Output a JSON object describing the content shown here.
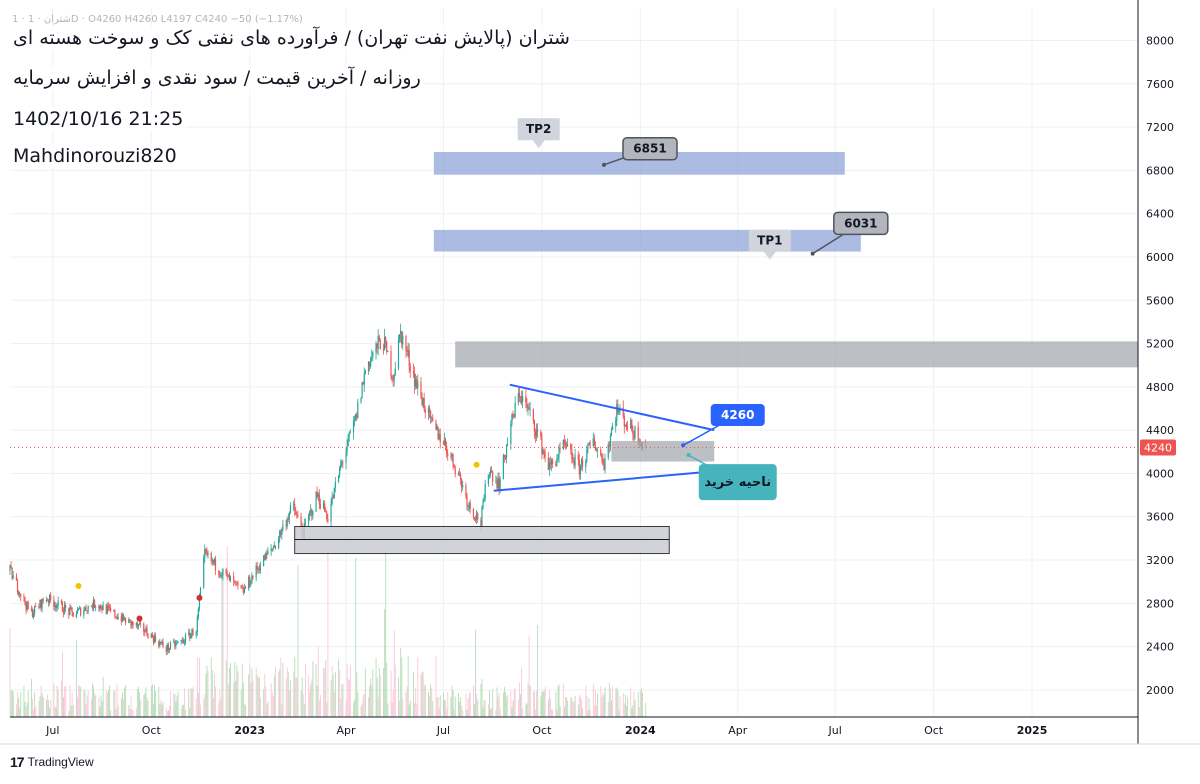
{
  "header": {
    "ohlc_line": "1 · شتران · 1D · O4260 H4260 L4197 C4240 −50 (−1.17%)",
    "title": "شتران (پالایش نفت تهران) / فرآورده های نفتی کک و سوخت هسته ای",
    "subtitle": "روزانه / آخرین قیمت / سود نقدی و افزایش سرمایه",
    "datetime": "1402/10/16 21:25",
    "author": "Mahdinorouzi820"
  },
  "branding": {
    "logo_mark": "17",
    "logo_text": "TradingView"
  },
  "colors": {
    "up": "#26a69a",
    "down": "#ef5350",
    "zone_blue": "#8fa4d8",
    "zone_grey": "#a6a9b0",
    "trendline": "#2962ff",
    "label_blue": "#2962ff",
    "label_teal": "#45b4bd",
    "price_tag": "#ef5350",
    "grid": "#eef0f3"
  },
  "chart_data": {
    "type": "candlestick",
    "y_axis": {
      "min": 1750,
      "max": 8300,
      "ticks": [
        2000,
        2400,
        2800,
        3200,
        3600,
        4000,
        4400,
        4800,
        5200,
        5600,
        6000,
        6400,
        6800,
        7200,
        7600,
        8000
      ]
    },
    "x_axis": {
      "start": "2022-05-22",
      "end": "2025-04-10",
      "ticks": [
        {
          "label": "Jul",
          "date": "2022-07-01"
        },
        {
          "label": "Oct",
          "date": "2022-10-01"
        },
        {
          "label": "2023",
          "date": "2023-01-01",
          "bold": true
        },
        {
          "label": "Apr",
          "date": "2023-04-01"
        },
        {
          "label": "Jul",
          "date": "2023-07-01"
        },
        {
          "label": "Oct",
          "date": "2023-10-01"
        },
        {
          "label": "2024",
          "date": "2024-01-01",
          "bold": true
        },
        {
          "label": "Apr",
          "date": "2024-04-01"
        },
        {
          "label": "Jul",
          "date": "2024-07-01"
        },
        {
          "label": "Oct",
          "date": "2024-10-01"
        },
        {
          "label": "2025",
          "date": "2025-01-01",
          "bold": true
        }
      ]
    },
    "price_path": [
      [
        "2022-05-22",
        3100
      ],
      [
        "2022-06-10",
        2700
      ],
      [
        "2022-06-25",
        2850
      ],
      [
        "2022-07-20",
        2700
      ],
      [
        "2022-08-10",
        2800
      ],
      [
        "2022-09-05",
        2650
      ],
      [
        "2022-09-25",
        2550
      ],
      [
        "2022-10-15",
        2380
      ],
      [
        "2022-10-30",
        2450
      ],
      [
        "2022-11-12",
        2560
      ],
      [
        "2022-11-20",
        3250
      ],
      [
        "2022-12-10",
        3050
      ],
      [
        "2022-12-25",
        2900
      ],
      [
        "2023-01-10",
        3150
      ],
      [
        "2023-01-25",
        3350
      ],
      [
        "2023-02-10",
        3700
      ],
      [
        "2023-02-20",
        3450
      ],
      [
        "2023-03-05",
        3800
      ],
      [
        "2023-03-15",
        3600
      ],
      [
        "2023-03-28",
        4100
      ],
      [
        "2023-04-10",
        4500
      ],
      [
        "2023-04-20",
        5000
      ],
      [
        "2023-05-05",
        5250
      ],
      [
        "2023-05-15",
        4900
      ],
      [
        "2023-05-22",
        5300
      ],
      [
        "2023-06-05",
        4850
      ],
      [
        "2023-06-20",
        4450
      ],
      [
        "2023-07-01",
        4300
      ],
      [
        "2023-07-15",
        4000
      ],
      [
        "2023-07-25",
        3700
      ],
      [
        "2023-08-05",
        3550
      ],
      [
        "2023-08-12",
        4050
      ],
      [
        "2023-08-22",
        3900
      ],
      [
        "2023-09-01",
        4400
      ],
      [
        "2023-09-10",
        4750
      ],
      [
        "2023-09-22",
        4500
      ],
      [
        "2023-10-08",
        4050
      ],
      [
        "2023-10-22",
        4250
      ],
      [
        "2023-11-05",
        4050
      ],
      [
        "2023-11-18",
        4300
      ],
      [
        "2023-11-28",
        4100
      ],
      [
        "2023-12-10",
        4600
      ],
      [
        "2023-12-20",
        4450
      ],
      [
        "2023-12-30",
        4350
      ],
      [
        "2024-01-06",
        4240
      ]
    ],
    "volume_date_range": [
      "2022-05-22",
      "2024-01-06"
    ],
    "last_price": {
      "value": 4240,
      "label": "4240"
    },
    "zones": [
      {
        "x0": "2023-06-22",
        "x1": "2024-07-10",
        "y0": 6760,
        "y1": 6970,
        "color": "blue"
      },
      {
        "x0": "2023-06-22",
        "x1": "2024-07-25",
        "y0": 6050,
        "y1": 6250,
        "color": "blue"
      },
      {
        "x0": "2023-07-12",
        "x1": "2025-04-10",
        "y0": 4980,
        "y1": 5220,
        "color": "grey"
      },
      {
        "x0": "2023-02-12",
        "x1": "2024-01-28",
        "y0": 3260,
        "y1": 3510,
        "color": "grey_outline",
        "midline": 3390
      },
      {
        "x0": "2023-12-05",
        "x1": "2024-03-10",
        "y0": 4110,
        "y1": 4300,
        "color": "grey"
      }
    ],
    "trendlines": [
      {
        "x0": "2023-09-01",
        "y0": 4820,
        "x1": "2024-03-10",
        "y1": 4400
      },
      {
        "x0": "2023-08-17",
        "y0": 3840,
        "x1": "2024-03-10",
        "y1": 4020
      }
    ],
    "markers": [
      {
        "x": "2022-07-25",
        "y": 2960,
        "color": "#f2c200"
      },
      {
        "x": "2022-09-20",
        "y": 2660,
        "color": "#d32f2f"
      },
      {
        "x": "2022-11-15",
        "y": 2850,
        "color": "#d32f2f"
      },
      {
        "x": "2023-08-01",
        "y": 4080,
        "color": "#f2c200"
      }
    ],
    "callouts": [
      {
        "id": "tp2",
        "text": "TP2",
        "x": "2023-09-28",
        "y": 7180,
        "style": "speech-down",
        "color": "#d1d4dc"
      },
      {
        "id": "tp2-value",
        "text": "6851",
        "x": "2024-01-10",
        "y": 7000,
        "style": "label",
        "color": "#b2b5be",
        "anchor_x": "2023-11-28",
        "anchor_y": 6851
      },
      {
        "id": "tp1",
        "text": "TP1",
        "x": "2024-05-01",
        "y": 6150,
        "style": "speech-down",
        "color": "#d1d4dc"
      },
      {
        "id": "tp1-value",
        "text": "6031",
        "x": "2024-07-25",
        "y": 6310,
        "style": "label",
        "color": "#b2b5be",
        "anchor_x": "2024-06-10",
        "anchor_y": 6031
      },
      {
        "id": "price-label",
        "text": "4260",
        "x": "2024-04-01",
        "y": 4540,
        "style": "label",
        "color": "#2962ff",
        "anchor_x": "2024-02-10",
        "anchor_y": 4260
      },
      {
        "id": "buy-zone",
        "text": "ناحیه خرید",
        "x": "2024-04-01",
        "y": 3920,
        "style": "label",
        "color": "#45b4bd",
        "anchor_x": "2024-02-15",
        "anchor_y": 4170
      }
    ]
  }
}
